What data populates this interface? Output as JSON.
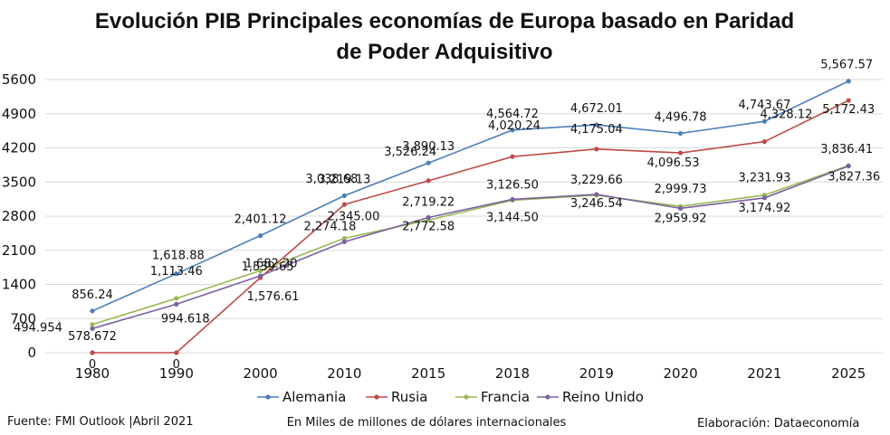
{
  "chart_data": {
    "type": "line",
    "title_line1": "Evolución PIB Principales economías de Europa basado en Paridad",
    "title_line2": "de Poder Adquisitivo",
    "categories": [
      "1980",
      "1990",
      "2000",
      "2010",
      "2015",
      "2018",
      "2019",
      "2020",
      "2021",
      "2025"
    ],
    "y_ticks": [
      "0",
      "700",
      "1400",
      "2100",
      "2800",
      "3500",
      "4200",
      "4900",
      "5600"
    ],
    "ylim": [
      0,
      5600
    ],
    "grid": true,
    "legend_position": "bottom",
    "series": [
      {
        "name": "Alemania",
        "color": "#4a7ebb",
        "values": [
          856.24,
          1618.88,
          2401.12,
          3219.13,
          3890.13,
          4564.72,
          4672.01,
          4496.78,
          4743.67,
          5567.57
        ],
        "labels": [
          "856.24",
          "1,618.88",
          "2,401.12",
          "3,219.13",
          "3,890.13",
          "4,564.72",
          "4,672.01",
          "4,496.78",
          "4,743.67",
          "5,567.57"
        ]
      },
      {
        "name": "Rusia",
        "color": "#be4b48",
        "values": [
          0,
          0,
          1539.65,
          3038.68,
          3526.24,
          4020.24,
          4175.04,
          4096.53,
          4328.12,
          5172.43
        ],
        "labels": [
          "0",
          "0",
          "1,539.65",
          "3,038.68",
          "3,526.24",
          "4,020.24",
          "4,175.04",
          "4,096.53",
          "4,328.12",
          "5,172.43"
        ]
      },
      {
        "name": "Francia",
        "color": "#98b954",
        "values": [
          578.672,
          1113.46,
          1682.2,
          2345.0,
          2719.22,
          3126.5,
          3229.66,
          2999.73,
          3231.93,
          3836.41
        ],
        "labels": [
          "578.672",
          "1,113.46",
          "1,682.20",
          "2,345.00",
          "2,719.22",
          "3,126.50",
          "3,229.66",
          "2,999.73",
          "3,231.93",
          "3,836.41"
        ]
      },
      {
        "name": "Reino Unido",
        "color": "#7d60a0",
        "values": [
          494.954,
          994.618,
          1576.61,
          2274.18,
          2772.58,
          3144.5,
          3246.54,
          2959.92,
          3174.92,
          3827.36
        ],
        "labels": [
          "494.954",
          "994.618",
          "1,576.61",
          "2,274.18",
          "2,772.58",
          "3,144.50",
          "3,246.54",
          "2,959.92",
          "3,174.92",
          "3,827.36"
        ]
      }
    ]
  },
  "footer": {
    "source": "Fuente: FMI Outlook |Abril 2021",
    "units": "En Miles de millones de dólares internacionales",
    "credit": "Elaboración: Dataeconomía"
  }
}
